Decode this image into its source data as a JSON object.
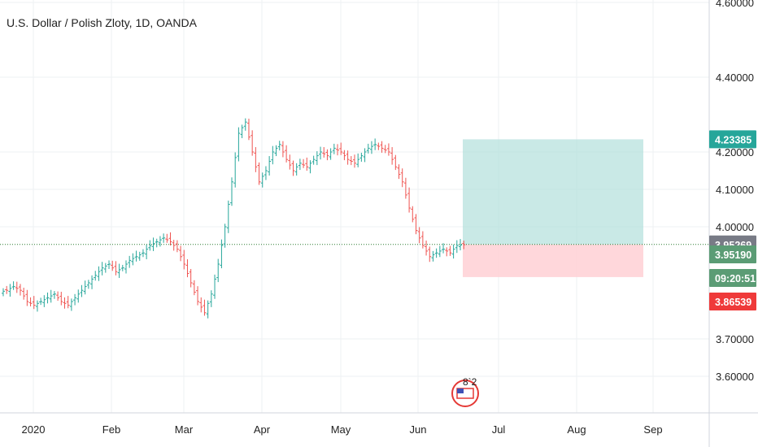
{
  "header": {
    "title": "U.S. Dollar / Polish Zloty, 1D, OANDA"
  },
  "colors": {
    "up": "#26a69a",
    "down": "#ef5350",
    "last_price_line": "#2e7d32",
    "target_zone": "#b2dfdb",
    "stop_zone": "#ffcdd2",
    "tag_target": "#26a69a",
    "tag_last": "#787b86",
    "tag_current": "#5b9c75",
    "tag_stop": "#ef3a3a"
  },
  "chart_data": {
    "type": "ohlc",
    "symbol": "USDPLN",
    "y_axis": {
      "range": [
        3.53,
        4.6
      ],
      "ticks": [
        "3.60000",
        "3.70000",
        "4.00000",
        "4.10000",
        "4.20000",
        "4.40000",
        "4.60000"
      ],
      "tick_values": [
        3.6,
        3.7,
        4.0,
        4.1,
        4.2,
        4.4,
        4.6
      ]
    },
    "x_axis": {
      "labels": [
        "2020",
        "Feb",
        "Mar",
        "Apr",
        "May",
        "Jun",
        "Jul",
        "Aug",
        "Sep"
      ]
    },
    "grid": true,
    "price_tags": {
      "target": "4.23385",
      "last": "3.95269",
      "current": "3.95190",
      "countdown": "09:20:51",
      "stop": "3.86539"
    },
    "position": {
      "entry": 3.95269,
      "target": 4.23385,
      "stop": 3.86539
    },
    "bars_close_path": [
      [
        3.83,
        0
      ],
      [
        3.84,
        1
      ],
      [
        3.83,
        2
      ],
      [
        3.8,
        3
      ],
      [
        3.79,
        4
      ],
      [
        3.8,
        5
      ],
      [
        3.81,
        6
      ],
      [
        3.82,
        7
      ],
      [
        3.8,
        8
      ],
      [
        3.79,
        9
      ],
      [
        3.81,
        10
      ],
      [
        3.83,
        11
      ],
      [
        3.85,
        12
      ],
      [
        3.87,
        13
      ],
      [
        3.89,
        14
      ],
      [
        3.9,
        15
      ],
      [
        3.88,
        16
      ],
      [
        3.89,
        17
      ],
      [
        3.91,
        18
      ],
      [
        3.92,
        19
      ],
      [
        3.93,
        20
      ],
      [
        3.95,
        21
      ],
      [
        3.96,
        22
      ],
      [
        3.97,
        23
      ],
      [
        3.96,
        24
      ],
      [
        3.94,
        25
      ],
      [
        3.9,
        26
      ],
      [
        3.85,
        27
      ],
      [
        3.8,
        28
      ],
      [
        3.77,
        29
      ],
      [
        3.82,
        30
      ],
      [
        3.9,
        31
      ],
      [
        4.0,
        32
      ],
      [
        4.12,
        33
      ],
      [
        4.25,
        34
      ],
      [
        4.28,
        35
      ],
      [
        4.2,
        36
      ],
      [
        4.12,
        37
      ],
      [
        4.15,
        38
      ],
      [
        4.2,
        39
      ],
      [
        4.22,
        40
      ],
      [
        4.18,
        41
      ],
      [
        4.15,
        42
      ],
      [
        4.17,
        43
      ],
      [
        4.16,
        44
      ],
      [
        4.18,
        45
      ],
      [
        4.2,
        46
      ],
      [
        4.19,
        47
      ],
      [
        4.21,
        48
      ],
      [
        4.2,
        49
      ],
      [
        4.18,
        50
      ],
      [
        4.17,
        51
      ],
      [
        4.19,
        52
      ],
      [
        4.21,
        53
      ],
      [
        4.22,
        54
      ],
      [
        4.21,
        55
      ],
      [
        4.2,
        56
      ],
      [
        4.16,
        57
      ],
      [
        4.12,
        58
      ],
      [
        4.05,
        59
      ],
      [
        3.99,
        60
      ],
      [
        3.95,
        61
      ],
      [
        3.92,
        62
      ],
      [
        3.93,
        63
      ],
      [
        3.94,
        64
      ],
      [
        3.93,
        65
      ],
      [
        3.95,
        66
      ],
      [
        3.952,
        67
      ]
    ]
  }
}
